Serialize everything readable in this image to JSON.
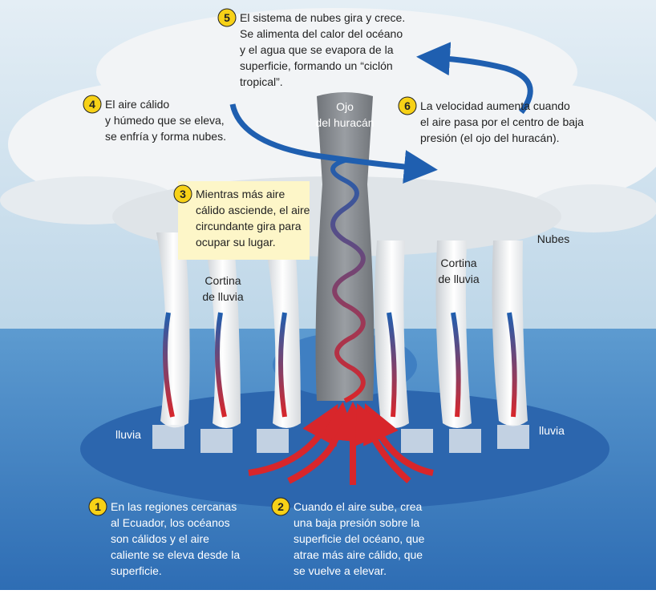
{
  "steps": [
    {
      "number": 1,
      "lines": [
        "En las regiones cercanas",
        "al Ecuador, los océanos",
        "son cálidos y el aire",
        "caliente se eleva desde la",
        "superficie."
      ]
    },
    {
      "number": 2,
      "lines": [
        "Cuando el aire sube, crea",
        "una baja presión sobre la",
        "superficie del océano, que",
        "atrae más aire cálido, que",
        "se vuelve a elevar."
      ]
    },
    {
      "number": 3,
      "lines": [
        "Mientras más aire",
        "cálido asciende, el aire",
        "circundante gira para",
        "ocupar su lugar."
      ]
    },
    {
      "number": 4,
      "lines": [
        "El aire cálido",
        "y húmedo que se eleva,",
        "se enfría y forma nubes."
      ]
    },
    {
      "number": 5,
      "lines": [
        "El sistema de nubes gira y crece.",
        "Se alimenta del calor del océano",
        "y el agua que se evapora de la",
        "superficie, formando un “ciclón",
        "tropical”."
      ]
    },
    {
      "number": 6,
      "lines": [
        "La velocidad aumenta cuando",
        "el aire pasa por el centro de baja",
        "presión (el ojo del huracán)."
      ]
    }
  ],
  "labels": {
    "eye": [
      "Ojo",
      "del huracán"
    ],
    "rain_curtain_left": [
      "Cortina",
      "de lluvia"
    ],
    "rain_curtain_right": [
      "Cortina",
      "de lluvia"
    ],
    "clouds": [
      "Nubes"
    ],
    "rain_left": [
      "lluvia"
    ],
    "rain_right": [
      "lluvia"
    ]
  }
}
